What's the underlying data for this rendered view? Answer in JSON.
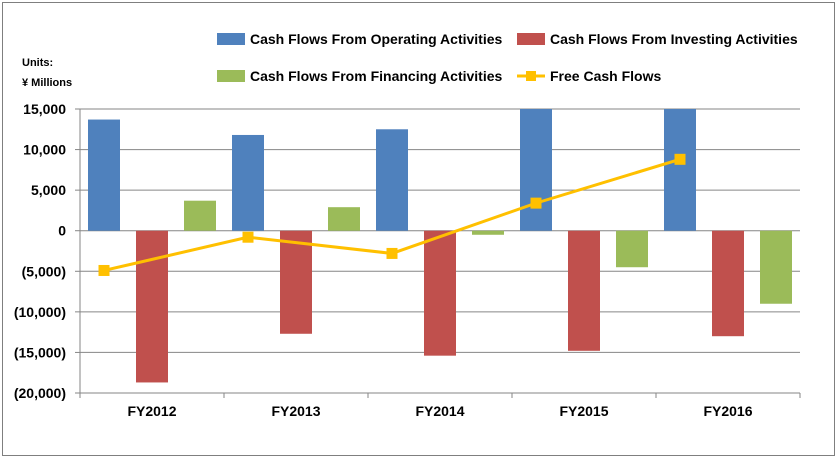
{
  "chart_data": {
    "type": "bar",
    "units_line1": "Units:",
    "units_line2": "¥ Millions",
    "categories": [
      "FY2012",
      "FY2013",
      "FY2014",
      "FY2015",
      "FY2016"
    ],
    "series": [
      {
        "name": "Cash Flows From Operating Activities",
        "type": "bar",
        "color": "#4f81bd",
        "values": [
          13700,
          11800,
          12500,
          15000,
          15000
        ]
      },
      {
        "name": "Cash Flows From Investing Activities",
        "type": "bar",
        "color": "#c0504d",
        "values": [
          -18700,
          -12700,
          -15400,
          -14800,
          -13000
        ]
      },
      {
        "name": "Cash Flows From Financing Activities",
        "type": "bar",
        "color": "#9bbb59",
        "values": [
          3700,
          2900,
          -500,
          -4500,
          -9000
        ]
      },
      {
        "name": "Free Cash Flows",
        "type": "line",
        "color": "#ffc000",
        "values": [
          -4900,
          -800,
          -2800,
          3400,
          8800
        ]
      }
    ],
    "yticks": [
      "15,000",
      "10,000",
      "5,000",
      "0",
      "(5,000)",
      "(10,000)",
      "(15,000)",
      "(20,000)"
    ],
    "ytick_values": [
      15000,
      10000,
      5000,
      0,
      -5000,
      -10000,
      -15000,
      -20000
    ],
    "ylim": [
      -20000,
      15000
    ],
    "grid": true,
    "legend": "top"
  }
}
